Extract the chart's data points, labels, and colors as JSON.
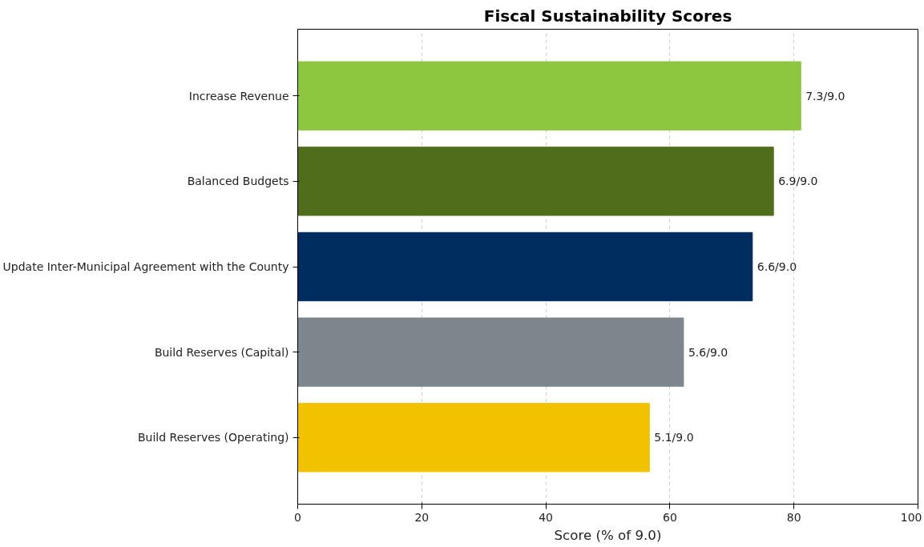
{
  "chart_data": {
    "type": "bar",
    "orientation": "horizontal",
    "title": "Fiscal Sustainability Scores",
    "xlabel": "Score (% of 9.0)",
    "categories": [
      "Increase Revenue",
      "Balanced Budgets",
      "Update Inter-Municipal Agreement with the County",
      "Build Reserves (Capital)",
      "Build Reserves (Operating)"
    ],
    "values": [
      81.1,
      76.7,
      73.3,
      62.2,
      56.7
    ],
    "colors": [
      "#8dc63f",
      "#4f6d1a",
      "#002d5f",
      "#7c868c",
      "#f2c200"
    ],
    "value_labels": [
      "7.3/9.0",
      "6.9/9.0",
      "6.6/9.0",
      "5.6/9.0",
      "5.1/9.0"
    ],
    "xlim": [
      0,
      100
    ],
    "xticks": [
      0,
      20,
      40,
      60,
      80,
      100
    ],
    "grid": "x"
  }
}
